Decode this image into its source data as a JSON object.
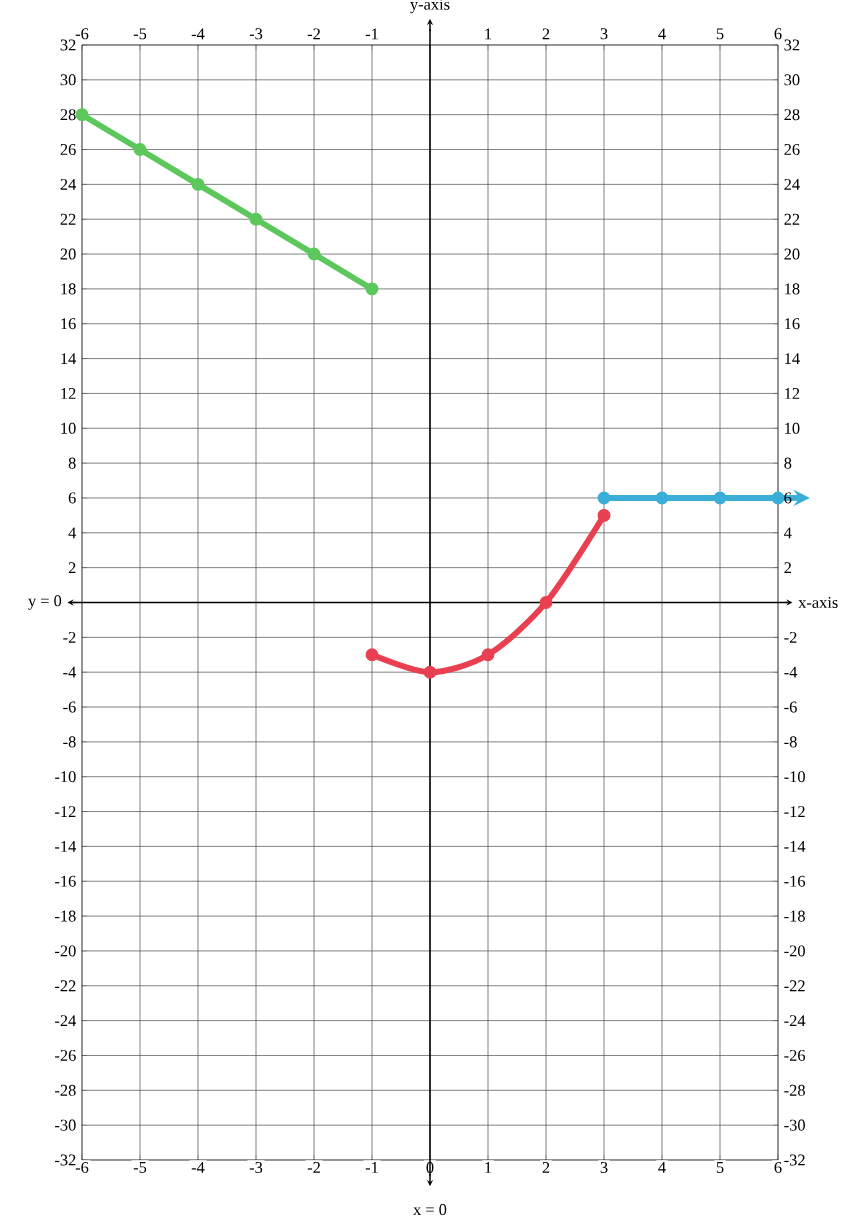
{
  "chart_data": {
    "type": "line",
    "xlabel": "x-axis",
    "ylabel": "y-axis",
    "series": [
      {
        "color": "#5cc85c",
        "x": [
          -6,
          -5,
          -4,
          -3,
          -2,
          -1
        ],
        "values": [
          28,
          26,
          24,
          22,
          20,
          18
        ]
      },
      {
        "color": "#e84050",
        "x": [
          -1,
          0,
          1,
          2,
          3
        ],
        "values": [
          -3,
          -4,
          -3,
          0,
          5
        ]
      },
      {
        "color": "#3aaed8",
        "x": [
          3,
          4,
          5,
          6
        ],
        "values": [
          6,
          6,
          6,
          6
        ]
      }
    ],
    "marker": "circle",
    "line_style": "solid",
    "grid": true,
    "xlim": [
      -6,
      6
    ],
    "ylim": [
      -32,
      32
    ],
    "xticks": [
      -6,
      -5,
      -4,
      -3,
      -2,
      -1,
      0,
      1,
      2,
      3,
      4,
      5,
      6
    ],
    "x2lim": [
      -6,
      6
    ],
    "x2ticks": [
      -6,
      -5,
      -4,
      -3,
      -2,
      -1,
      1,
      2,
      3,
      4,
      5,
      6
    ],
    "yticks": [
      -32,
      -30,
      -28,
      -26,
      -24,
      -22,
      -20,
      -18,
      -16,
      -14,
      -12,
      -10,
      -8,
      -6,
      -4,
      -2,
      2,
      4,
      6,
      8,
      10,
      12,
      14,
      16,
      18,
      20,
      22,
      24,
      26,
      28,
      30,
      32
    ],
    "y2lim": [
      -32,
      32
    ],
    "y2ticks": [
      -32,
      -30,
      -28,
      -26,
      -24,
      -22,
      -20,
      -18,
      -16,
      -14,
      -12,
      -10,
      -8,
      -6,
      -4,
      -2,
      2,
      4,
      6,
      8,
      10,
      12,
      14,
      16,
      18,
      20,
      22,
      24,
      26,
      28,
      30,
      32
    ],
    "ref_lines": [
      {
        "axis": "y",
        "value": 0,
        "label": "y = 0"
      },
      {
        "axis": "x",
        "value": 0,
        "label": "x = 0"
      }
    ]
  }
}
